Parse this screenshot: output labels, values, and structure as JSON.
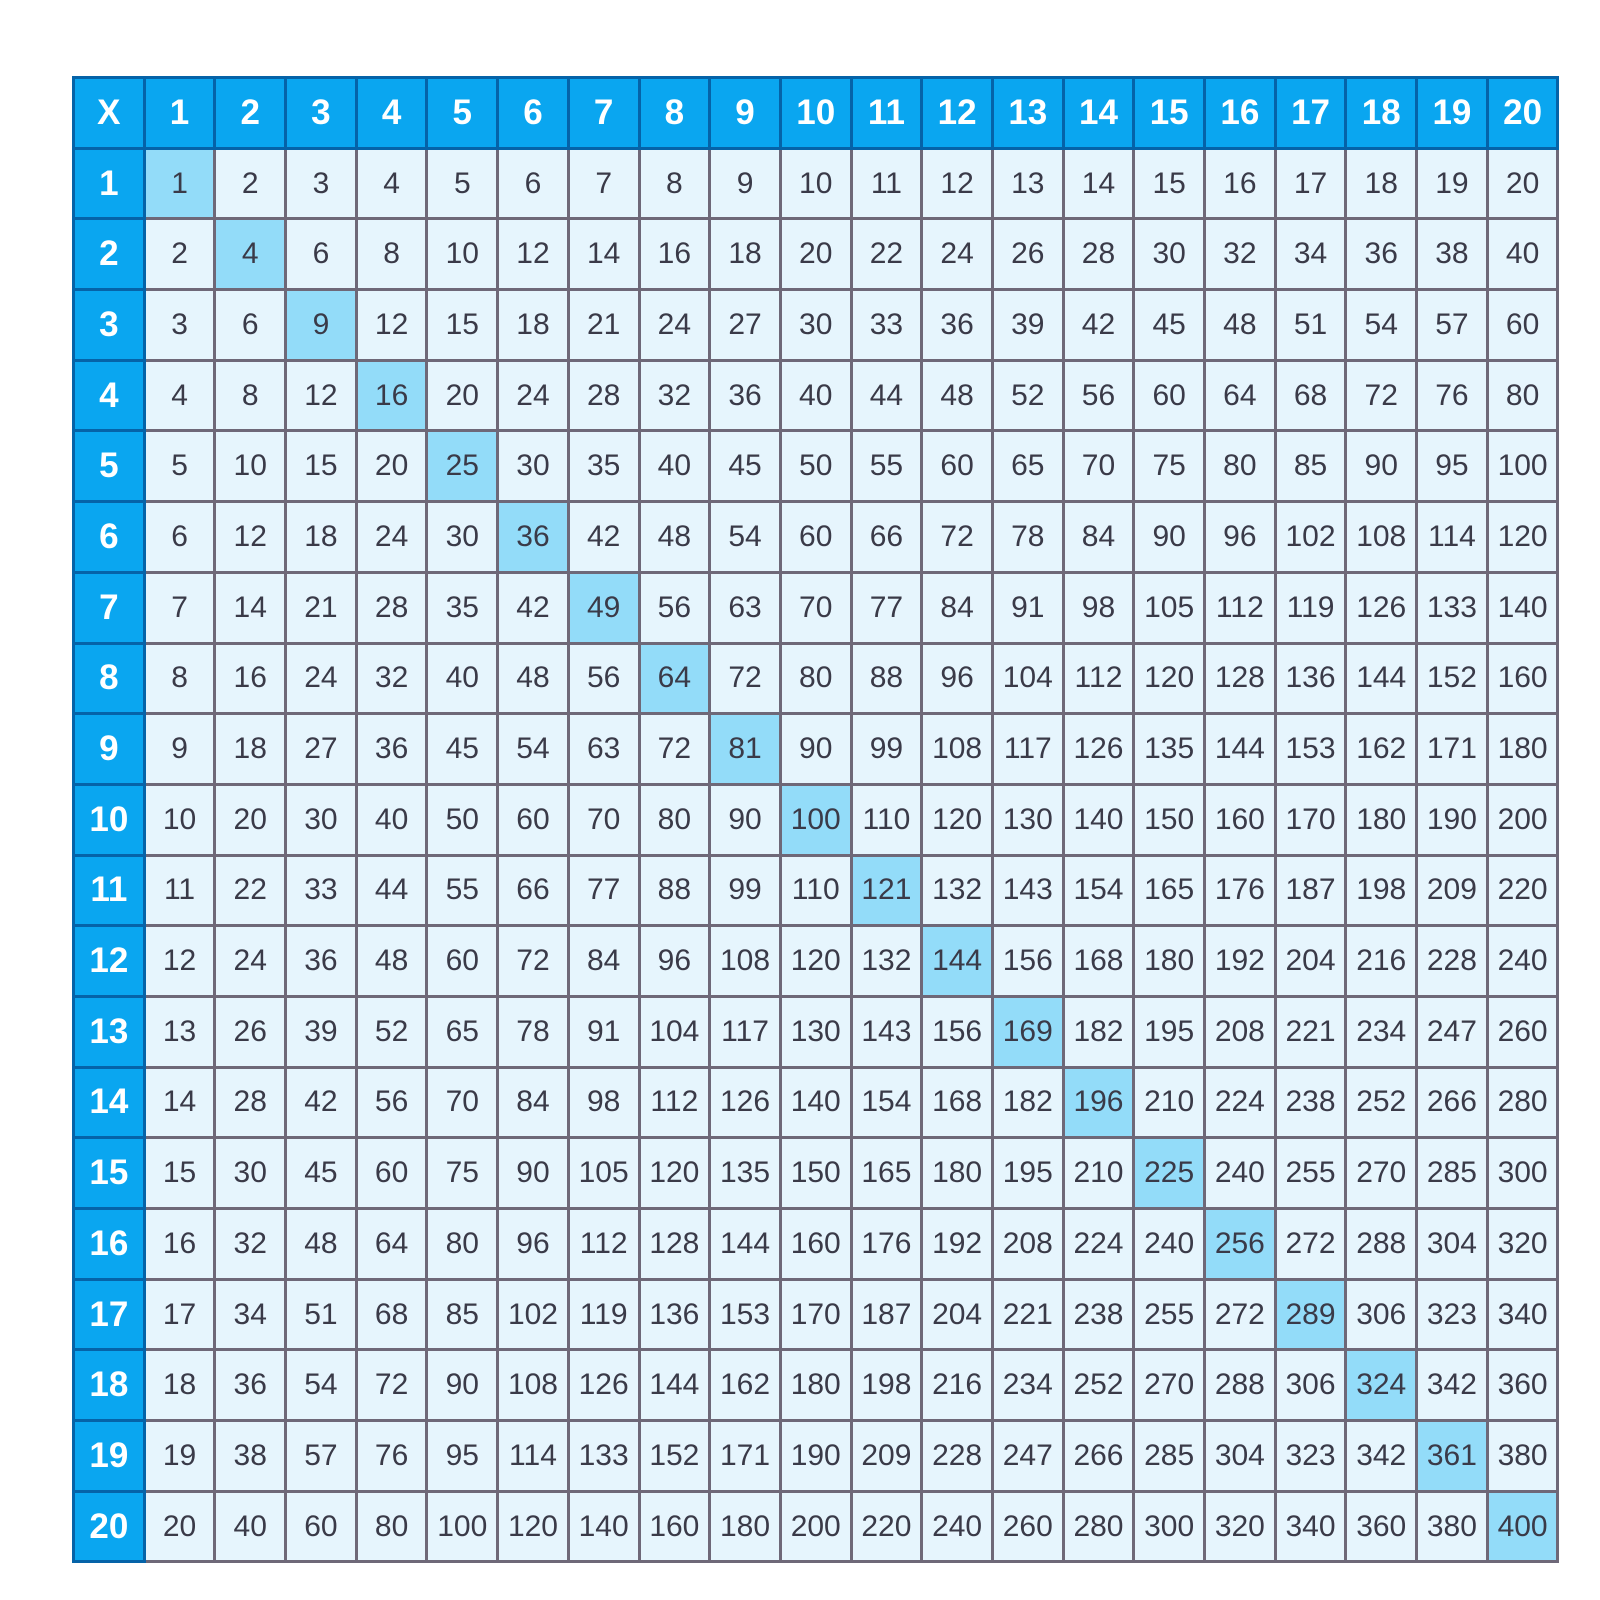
{
  "corner_label": "X",
  "column_headers": [
    "1",
    "2",
    "3",
    "4",
    "5",
    "6",
    "7",
    "8",
    "9",
    "10",
    "11",
    "12",
    "13",
    "14",
    "15",
    "16",
    "17",
    "18",
    "19",
    "20"
  ],
  "row_headers": [
    "1",
    "2",
    "3",
    "4",
    "5",
    "6",
    "7",
    "8",
    "9",
    "10",
    "11",
    "12",
    "13",
    "14",
    "15",
    "16",
    "17",
    "18",
    "19",
    "20"
  ],
  "colors": {
    "header_bg": "#0aa6f0",
    "header_border": "#0563a8",
    "cell_bg": "#e6f5fd",
    "diagonal_bg": "#93dcf9",
    "grid_border": "#6e6878",
    "text": "#3a3a48"
  },
  "highlight": "diagonal squares",
  "rows": [
    [
      1,
      2,
      3,
      4,
      5,
      6,
      7,
      8,
      9,
      10,
      11,
      12,
      13,
      14,
      15,
      16,
      17,
      18,
      19,
      20
    ],
    [
      2,
      4,
      6,
      8,
      10,
      12,
      14,
      16,
      18,
      20,
      22,
      24,
      26,
      28,
      30,
      32,
      34,
      36,
      38,
      40
    ],
    [
      3,
      6,
      9,
      12,
      15,
      18,
      21,
      24,
      27,
      30,
      33,
      36,
      39,
      42,
      45,
      48,
      51,
      54,
      57,
      60
    ],
    [
      4,
      8,
      12,
      16,
      20,
      24,
      28,
      32,
      36,
      40,
      44,
      48,
      52,
      56,
      60,
      64,
      68,
      72,
      76,
      80
    ],
    [
      5,
      10,
      15,
      20,
      25,
      30,
      35,
      40,
      45,
      50,
      55,
      60,
      65,
      70,
      75,
      80,
      85,
      90,
      95,
      100
    ],
    [
      6,
      12,
      18,
      24,
      30,
      36,
      42,
      48,
      54,
      60,
      66,
      72,
      78,
      84,
      90,
      96,
      102,
      108,
      114,
      120
    ],
    [
      7,
      14,
      21,
      28,
      35,
      42,
      49,
      56,
      63,
      70,
      77,
      84,
      91,
      98,
      105,
      112,
      119,
      126,
      133,
      140
    ],
    [
      8,
      16,
      24,
      32,
      40,
      48,
      56,
      64,
      72,
      80,
      88,
      96,
      104,
      112,
      120,
      128,
      136,
      144,
      152,
      160
    ],
    [
      9,
      18,
      27,
      36,
      45,
      54,
      63,
      72,
      81,
      90,
      99,
      108,
      117,
      126,
      135,
      144,
      153,
      162,
      171,
      180
    ],
    [
      10,
      20,
      30,
      40,
      50,
      60,
      70,
      80,
      90,
      100,
      110,
      120,
      130,
      140,
      150,
      160,
      170,
      180,
      190,
      200
    ],
    [
      11,
      22,
      33,
      44,
      55,
      66,
      77,
      88,
      99,
      110,
      121,
      132,
      143,
      154,
      165,
      176,
      187,
      198,
      209,
      220
    ],
    [
      12,
      24,
      36,
      48,
      60,
      72,
      84,
      96,
      108,
      120,
      132,
      144,
      156,
      168,
      180,
      192,
      204,
      216,
      228,
      240
    ],
    [
      13,
      26,
      39,
      52,
      65,
      78,
      91,
      104,
      117,
      130,
      143,
      156,
      169,
      182,
      195,
      208,
      221,
      234,
      247,
      260
    ],
    [
      14,
      28,
      42,
      56,
      70,
      84,
      98,
      112,
      126,
      140,
      154,
      168,
      182,
      196,
      210,
      224,
      238,
      252,
      266,
      280
    ],
    [
      15,
      30,
      45,
      60,
      75,
      90,
      105,
      120,
      135,
      150,
      165,
      180,
      195,
      210,
      225,
      240,
      255,
      270,
      285,
      300
    ],
    [
      16,
      32,
      48,
      64,
      80,
      96,
      112,
      128,
      144,
      160,
      176,
      192,
      208,
      224,
      240,
      256,
      272,
      288,
      304,
      320
    ],
    [
      17,
      34,
      51,
      68,
      85,
      102,
      119,
      136,
      153,
      170,
      187,
      204,
      221,
      238,
      255,
      272,
      289,
      306,
      323,
      340
    ],
    [
      18,
      36,
      54,
      72,
      90,
      108,
      126,
      144,
      162,
      180,
      198,
      216,
      234,
      252,
      270,
      288,
      306,
      324,
      342,
      360
    ],
    [
      19,
      38,
      57,
      76,
      95,
      114,
      133,
      152,
      171,
      190,
      209,
      228,
      247,
      266,
      285,
      304,
      323,
      342,
      361,
      380
    ],
    [
      20,
      40,
      60,
      80,
      100,
      120,
      140,
      160,
      180,
      200,
      220,
      240,
      260,
      280,
      300,
      320,
      340,
      360,
      380,
      400
    ]
  ]
}
